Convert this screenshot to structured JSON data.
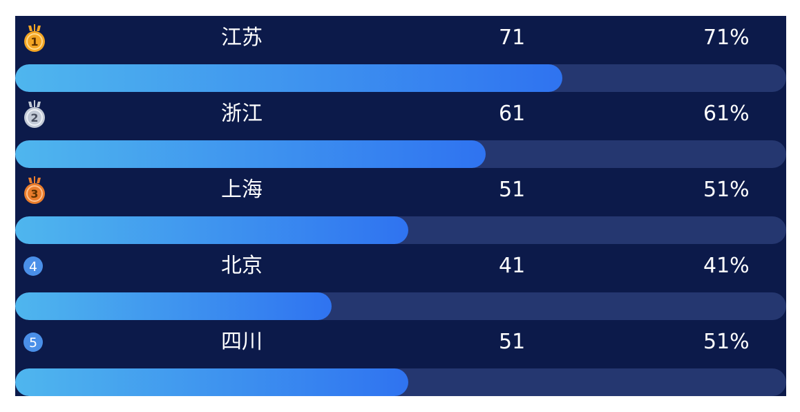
{
  "chart_data": {
    "type": "bar",
    "orientation": "horizontal",
    "xlim": [
      0,
      100
    ],
    "rows": [
      {
        "rank": "1",
        "rank_icon": "gold-medal-icon",
        "name": "江苏",
        "value": 71,
        "value_label": "71",
        "percent": 71,
        "percent_label": "71%"
      },
      {
        "rank": "2",
        "rank_icon": "silver-medal-icon",
        "name": "浙江",
        "value": 61,
        "value_label": "61",
        "percent": 61,
        "percent_label": "61%"
      },
      {
        "rank": "3",
        "rank_icon": "bronze-medal-icon",
        "name": "上海",
        "value": 51,
        "value_label": "51",
        "percent": 51,
        "percent_label": "51%"
      },
      {
        "rank": "4",
        "rank_icon": "rank-badge-icon",
        "name": "北京",
        "value": 41,
        "value_label": "41",
        "percent": 41,
        "percent_label": "41%"
      },
      {
        "rank": "5",
        "rank_icon": "rank-badge-icon",
        "name": "四川",
        "value": 51,
        "value_label": "51",
        "percent": 51,
        "percent_label": "51%"
      }
    ]
  },
  "colors": {
    "background": "#0c1a4a",
    "track": "#253770",
    "bar_start": "#4fb6ee",
    "bar_end": "#2f73f0",
    "gold": "#f3a524",
    "silver": "#c3cad6",
    "bronze": "#ea7d2c",
    "badge": "#4a8fe8"
  }
}
